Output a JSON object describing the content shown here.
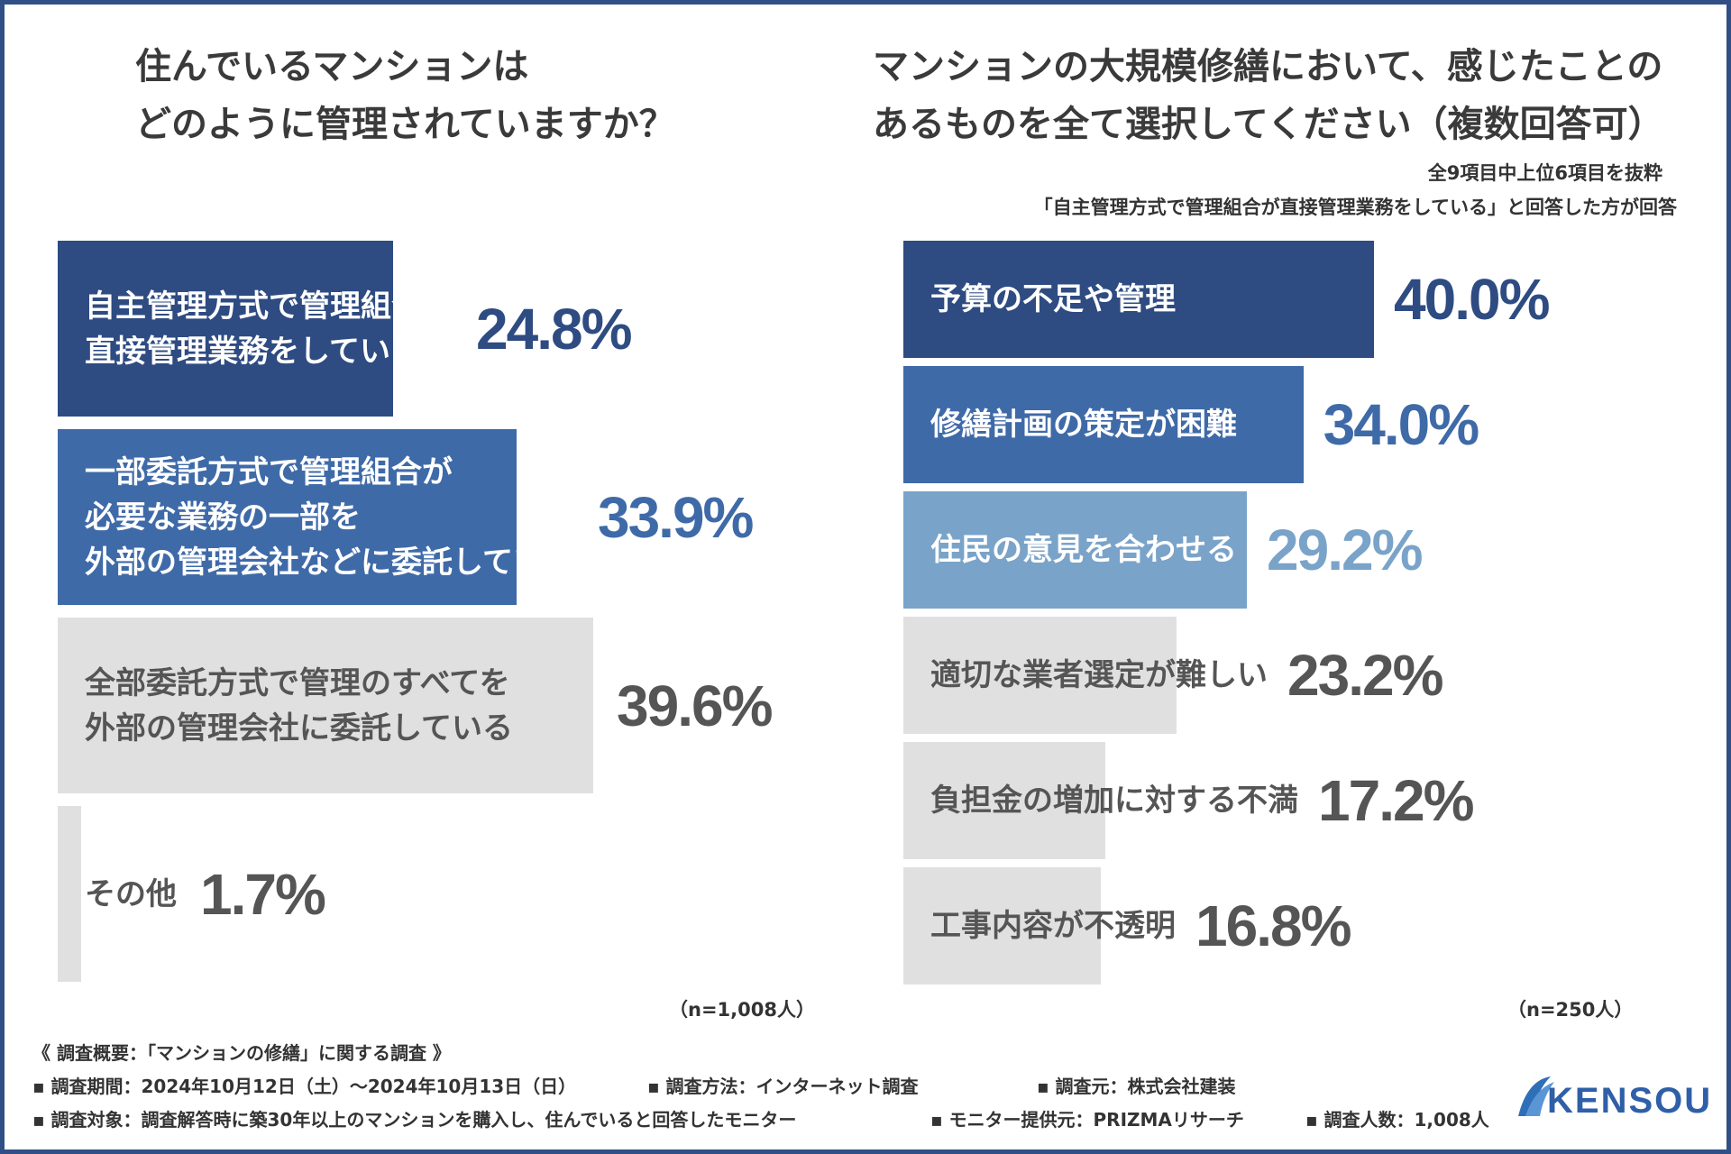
{
  "colors": {
    "frame": "#2f4f86",
    "dark_navy": "#2e4b82",
    "mid_blue": "#3f6aa8",
    "light_blue": "#7aa3c9",
    "gray_bar": "#e0e0e0",
    "gray_text": "#555555"
  },
  "left_panel": {
    "title_line1": "住んでいるマンションは",
    "title_line2": "どのように管理されていますか？",
    "sample": "（n=1,008人）"
  },
  "right_panel": {
    "title_line1": "マンションの大規模修繕において、感じたことの",
    "title_line2": "あるものを全て選択してください（複数回答可）",
    "note1": "全9項目中上位6項目を抜粋",
    "note2": "「自主管理方式で管理組合が直接管理業務をしている」と回答した方が回答",
    "sample": "（n=250人）"
  },
  "chart_data": [
    {
      "type": "bar",
      "orientation": "horizontal",
      "title": "住んでいるマンションは どのように管理されていますか？",
      "categories": [
        "自主管理方式で管理組合が 直接管理業務をしている",
        "一部委託方式で管理組合が 必要な業務の一部を 外部の管理会社などに委託している",
        "全部委託方式で管理のすべてを 外部の管理会社に委託している",
        "その他"
      ],
      "label_lines": [
        [
          "自主管理方式で管理組合が",
          "直接管理業務をしている"
        ],
        [
          "一部委託方式で管理組合が",
          "必要な業務の一部を",
          "外部の管理会社などに委託している"
        ],
        [
          "全部委託方式で管理のすべてを",
          "外部の管理会社に委託している"
        ],
        [
          "その他"
        ]
      ],
      "values": [
        24.8,
        33.9,
        39.6,
        1.7
      ],
      "value_labels": [
        "24.8%",
        "33.9%",
        "39.6%",
        "1.7%"
      ],
      "bar_colors": [
        "#2e4b82",
        "#3f6aa8",
        "#e0e0e0",
        "#e0e0e0"
      ],
      "text_colors": [
        "#ffffff",
        "#ffffff",
        "#555555",
        "#555555"
      ],
      "value_colors": [
        "#2e4b82",
        "#3f6aa8",
        "#555555",
        "#555555"
      ],
      "xlim": [
        0,
        40
      ],
      "unit": "%",
      "n": "n=1,008人"
    },
    {
      "type": "bar",
      "orientation": "horizontal",
      "title": "マンションの大規模修繕において、感じたことのあるものを全て選択してください（複数回答可）",
      "categories": [
        "予算の不足や管理",
        "修繕計画の策定が困難",
        "住民の意見を合わせる",
        "適切な業者選定が難しい",
        "負担金の増加に対する不満",
        "工事内容が不透明"
      ],
      "values": [
        40.0,
        34.0,
        29.2,
        23.2,
        17.2,
        16.8
      ],
      "value_labels": [
        "40.0%",
        "34.0%",
        "29.2%",
        "23.2%",
        "17.2%",
        "16.8%"
      ],
      "bar_colors": [
        "#2e4b82",
        "#3f6aa8",
        "#7aa3c9",
        "#e0e0e0",
        "#e0e0e0",
        "#e0e0e0"
      ],
      "text_colors": [
        "#ffffff",
        "#ffffff",
        "#ffffff",
        "#555555",
        "#555555",
        "#555555"
      ],
      "value_colors": [
        "#2e4b82",
        "#3f6aa8",
        "#7aa3c9",
        "#555555",
        "#555555",
        "#555555"
      ],
      "xlim": [
        0,
        40
      ],
      "unit": "%",
      "n": "n=250人"
    }
  ],
  "footer": {
    "heading": "《 調査概要：「マンションの修繕」に関する調査 》",
    "period": "▪ 調査期間：2024年10月12日（土）～2024年10月13日（日）",
    "method": "▪ 調査方法：インターネット調査",
    "source": "▪ 調査元：株式会社建装",
    "target": "▪ 調査対象：調査解答時に築30年以上のマンションを購入し、住んでいると回答したモニター",
    "provider": "▪ モニター提供元：PRIZMAリサーチ",
    "count": "▪ 調査人数：1,008人",
    "logo_text": "KENSOU"
  }
}
